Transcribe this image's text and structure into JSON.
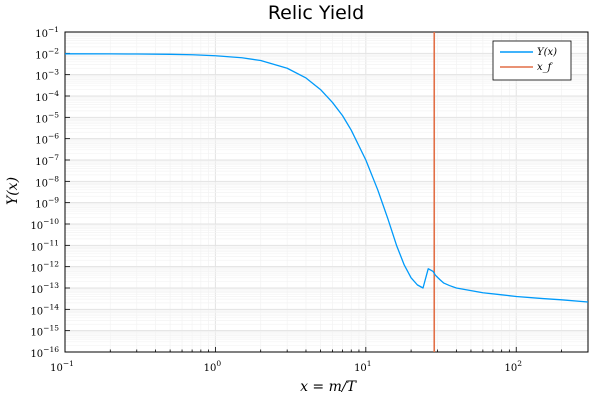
{
  "chart_data": {
    "type": "line",
    "title": "Relic Yield",
    "xlabel": "x = m/T",
    "ylabel": "Y(x)",
    "xscale": "log",
    "yscale": "log",
    "xlim": [
      0.1,
      300
    ],
    "ylim": [
      1e-16,
      0.1
    ],
    "grid": true,
    "legend_position": "top-right",
    "x_ticks": [
      {
        "value": 0.1,
        "base": "10",
        "exp": "−1"
      },
      {
        "value": 1,
        "base": "10",
        "exp": "0"
      },
      {
        "value": 10,
        "base": "10",
        "exp": "1"
      },
      {
        "value": 100,
        "base": "10",
        "exp": "2"
      }
    ],
    "y_ticks": [
      {
        "value": 1e-16,
        "base": "10",
        "exp": "−16"
      },
      {
        "value": 1e-15,
        "base": "10",
        "exp": "−15"
      },
      {
        "value": 1e-14,
        "base": "10",
        "exp": "−14"
      },
      {
        "value": 1e-13,
        "base": "10",
        "exp": "−13"
      },
      {
        "value": 1e-12,
        "base": "10",
        "exp": "−12"
      },
      {
        "value": 1e-11,
        "base": "10",
        "exp": "−11"
      },
      {
        "value": 1e-10,
        "base": "10",
        "exp": "−10"
      },
      {
        "value": 1e-09,
        "base": "10",
        "exp": "−9"
      },
      {
        "value": 1e-08,
        "base": "10",
        "exp": "−8"
      },
      {
        "value": 1e-07,
        "base": "10",
        "exp": "−7"
      },
      {
        "value": 1e-06,
        "base": "10",
        "exp": "−6"
      },
      {
        "value": 1e-05,
        "base": "10",
        "exp": "−5"
      },
      {
        "value": 0.0001,
        "base": "10",
        "exp": "−4"
      },
      {
        "value": 0.001,
        "base": "10",
        "exp": "−3"
      },
      {
        "value": 0.01,
        "base": "10",
        "exp": "−2"
      },
      {
        "value": 0.1,
        "base": "10",
        "exp": "−1"
      }
    ],
    "series": [
      {
        "name": "Y(x)",
        "color": "#009AFA",
        "x": [
          0.1,
          0.2,
          0.3,
          0.5,
          0.7,
          1,
          1.5,
          2,
          3,
          4,
          5,
          6,
          7,
          8,
          10,
          12,
          14,
          16,
          18,
          20,
          22,
          24,
          26,
          28,
          29,
          31,
          33,
          36,
          40,
          50,
          60,
          80,
          100,
          150,
          200,
          300
        ],
        "y": [
          0.0095,
          0.0094,
          0.0093,
          0.009,
          0.0086,
          0.0077,
          0.0062,
          0.0046,
          0.002,
          0.0007,
          0.0002,
          5e-05,
          1.2e-05,
          2.5e-06,
          1e-07,
          4e-09,
          1.8e-10,
          1e-11,
          1.2e-12,
          3e-13,
          1.4e-13,
          1e-13,
          8e-13,
          6e-13,
          4e-13,
          2.5e-13,
          1.7e-13,
          1.3e-13,
          1e-13,
          7.5e-14,
          6e-14,
          4.8e-14,
          4e-14,
          3.2e-14,
          2.8e-14,
          2.2e-14
        ]
      },
      {
        "name": "x_f",
        "color": "#E26F46",
        "x": [
          28.5,
          28.5
        ],
        "y": [
          1e-16,
          0.1
        ]
      }
    ]
  }
}
